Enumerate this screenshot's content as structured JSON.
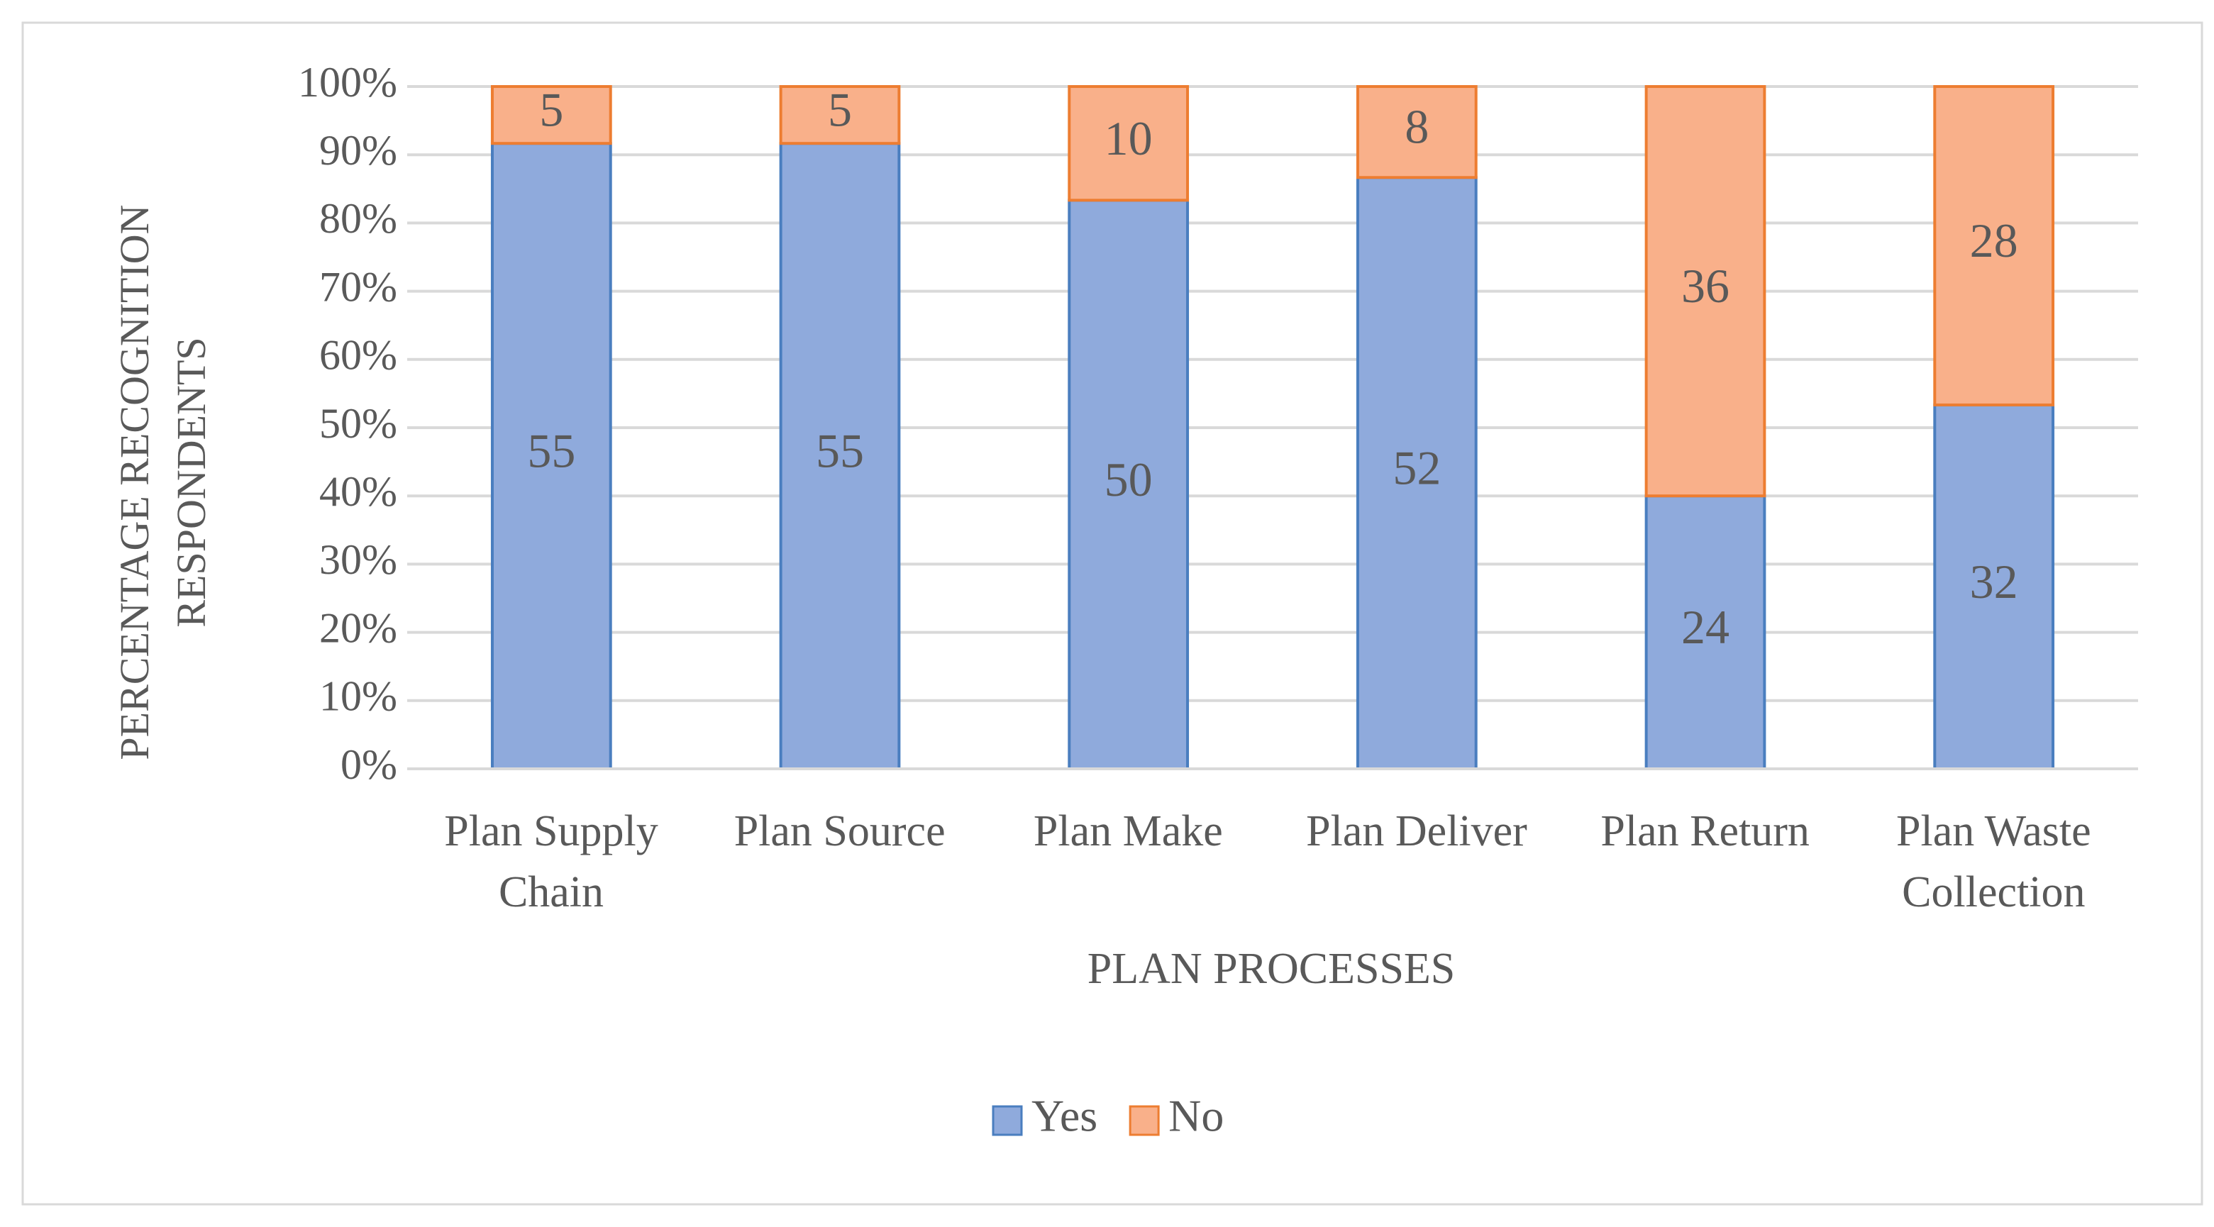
{
  "chart_data": {
    "type": "bar",
    "stacking": "percent",
    "x_label": "PLAN PROCESSES",
    "y_label": "PERCENTAGE RECOGNITION RESPONDENTS",
    "categories": [
      "Plan Supply Chain",
      "Plan Source",
      "Plan Make",
      "Plan Deliver",
      "Plan Return",
      "Plan Waste Collection"
    ],
    "series": [
      {
        "name": "Yes",
        "color": "#8faadc",
        "edge_color": "#4a7ebf",
        "values": [
          55,
          55,
          50,
          52,
          24,
          32
        ]
      },
      {
        "name": "No",
        "color": "#f9b08a",
        "edge_color": "#ed7d31",
        "values": [
          5,
          5,
          10,
          8,
          36,
          28
        ]
      }
    ],
    "ylim": [
      0,
      100
    ],
    "yticks": [
      {
        "value": 0,
        "label": "0%"
      },
      {
        "value": 10,
        "label": "10%"
      },
      {
        "value": 20,
        "label": "20%"
      },
      {
        "value": 30,
        "label": "30%"
      },
      {
        "value": 40,
        "label": "40%"
      },
      {
        "value": 50,
        "label": "50%"
      },
      {
        "value": 60,
        "label": "60%"
      },
      {
        "value": 70,
        "label": "70%"
      },
      {
        "value": 80,
        "label": "80%"
      },
      {
        "value": 90,
        "label": "90%"
      },
      {
        "value": 100,
        "label": "100%"
      }
    ],
    "grid": true,
    "legend": "bottom"
  }
}
